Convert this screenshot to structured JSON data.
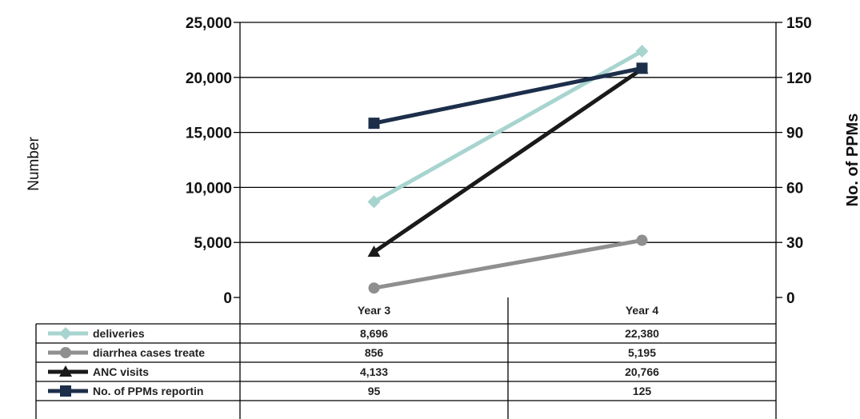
{
  "chart_data": {
    "type": "line",
    "categories": [
      "Year 3",
      "Year 4"
    ],
    "ylabel_left": "Number",
    "ylabel_right": "No. of PPMs",
    "ylim_left": [
      0,
      25000
    ],
    "ylim_right": [
      0,
      150
    ],
    "yticks_left": [
      "25,000",
      "20,000",
      "15,000",
      "10,000",
      "5,000",
      "0"
    ],
    "yticks_right": [
      "150",
      "120",
      "90",
      "60",
      "30",
      "0"
    ],
    "grid": true,
    "legend": "data table below the plot",
    "series": [
      {
        "name": "deliveries",
        "axis": "left",
        "values": [
          8696,
          22380
        ],
        "labels": [
          "8,696",
          "22,380"
        ],
        "color": "#a8d4cf",
        "marker": "diamond"
      },
      {
        "name": "diarrhea cases treate",
        "axis": "left",
        "values": [
          856,
          5195
        ],
        "labels": [
          "856",
          "5,195"
        ],
        "color": "#8f8f8f",
        "marker": "circle"
      },
      {
        "name": "ANC visits",
        "axis": "left",
        "values": [
          4133,
          20766
        ],
        "labels": [
          "4,133",
          "20,766"
        ],
        "color": "#1a1a1a",
        "marker": "triangle"
      },
      {
        "name": "No. of PPMs reportin",
        "axis": "right",
        "values": [
          95,
          125
        ],
        "labels": [
          "95",
          "125"
        ],
        "color": "#1c2e4a",
        "marker": "square"
      }
    ]
  }
}
